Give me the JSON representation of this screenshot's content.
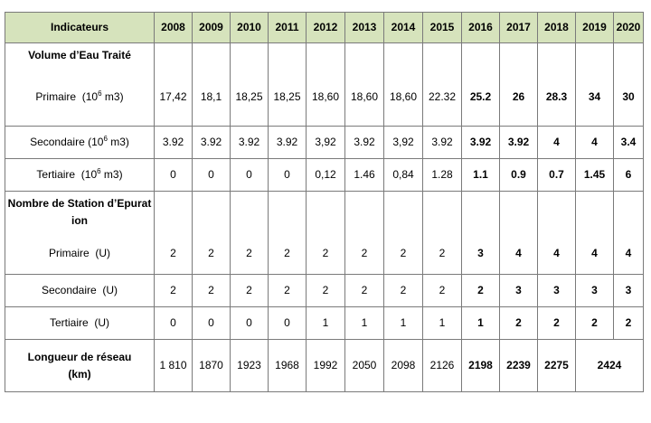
{
  "header": {
    "indicator_label": "Indicateurs",
    "years": [
      "2008",
      "2009",
      "2010",
      "2011",
      "2012",
      "2013",
      "2014",
      "2015",
      "2016",
      "2017",
      "2018",
      "2019",
      "2020"
    ]
  },
  "sections": {
    "volume_title": "Volume d’Eau Traité",
    "stations_title": "Nombre de Station d’Epuration"
  },
  "rows": {
    "vol_primaire": {
      "label": "Primaire",
      "unit_prefix": "(10",
      "unit_exp": "6",
      "unit_suffix": " m3)",
      "values": [
        "17,42",
        "18,1",
        "18,25",
        "18,25",
        "18,60",
        "18,60",
        "18,60",
        "22.32",
        "25.2",
        "26",
        "28.3",
        "34",
        "30"
      ]
    },
    "vol_secondaire": {
      "label": "Secondaire",
      "unit_prefix": "(10",
      "unit_exp": "6",
      "unit_suffix": " m3)",
      "values": [
        "3.92",
        "3.92",
        "3.92",
        "3.92",
        "3,92",
        "3.92",
        "3,92",
        "3.92",
        "3.92",
        "3.92",
        "4",
        "4",
        "3.4"
      ]
    },
    "vol_tertiaire": {
      "label": "Tertiaire",
      "unit_prefix": "(10",
      "unit_exp": "6",
      "unit_suffix": " m3)",
      "values": [
        "0",
        "0",
        "0",
        "0",
        "0,12",
        "1.46",
        "0,84",
        "1.28",
        "1.1",
        "0.9",
        "0.7",
        "1.45",
        "6"
      ]
    },
    "st_primaire": {
      "label": "Primaire",
      "unit": "(U)",
      "values": [
        "2",
        "2",
        "2",
        "2",
        "2",
        "2",
        "2",
        "2",
        "3",
        "4",
        "4",
        "4",
        "4"
      ]
    },
    "st_secondaire": {
      "label": "Secondaire",
      "unit": "(U)",
      "values": [
        "2",
        "2",
        "2",
        "2",
        "2",
        "2",
        "2",
        "2",
        "2",
        "3",
        "3",
        "3",
        "3"
      ]
    },
    "st_tertiaire": {
      "label": "Tertiaire",
      "unit": "(U)",
      "values": [
        "0",
        "0",
        "0",
        "0",
        "1",
        "1",
        "1",
        "1",
        "1",
        "2",
        "2",
        "2",
        "2"
      ]
    },
    "longueur": {
      "label": "Longueur de réseau (km)",
      "values": [
        "1 810",
        "1870",
        "1923",
        "1968",
        "1992",
        "2050",
        "2098",
        "2126",
        "2198",
        "2239",
        "2275",
        "2424",
        ""
      ]
    }
  }
}
